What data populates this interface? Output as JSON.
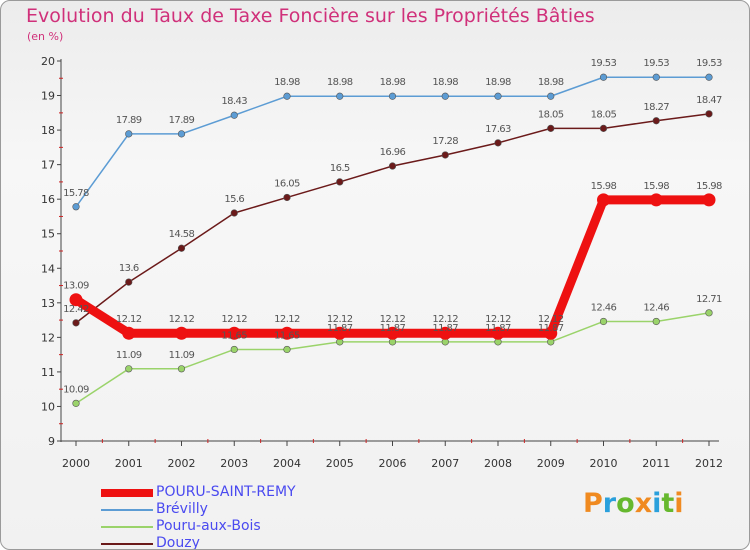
{
  "title": "Evolution du Taux de Taxe Foncière sur les Propriétés Bâties",
  "unit": "(en %)",
  "logo": {
    "text": "Proxiti",
    "colors": [
      "#f08a20",
      "#2aa0dc",
      "#66b82e",
      "#f08a20",
      "#2aa0dc",
      "#66b82e",
      "#f08a20"
    ]
  },
  "chart_data": {
    "type": "line",
    "title": "Evolution du Taux de Taxe Foncière sur les Propriétés Bâties",
    "ylabel": "(en %)",
    "xlabel": "",
    "categories": [
      "2000",
      "2001",
      "2002",
      "2003",
      "2004",
      "2005",
      "2006",
      "2007",
      "2008",
      "2009",
      "2010",
      "2011",
      "2012"
    ],
    "yticks": [
      "9",
      "10",
      "11",
      "12",
      "13",
      "14",
      "15",
      "16",
      "17",
      "18",
      "19",
      "20"
    ],
    "ylim": [
      9,
      20
    ],
    "grid": false,
    "series": [
      {
        "name": "Brévilly",
        "color": "#5c9cd4",
        "labels": [
          "15.78",
          "17.89",
          "17.89",
          "18.43",
          "18.98",
          "18.98",
          "18.98",
          "18.98",
          "18.98",
          "18.98",
          "19.53",
          "19.53",
          "19.53"
        ],
        "values": [
          15.78,
          17.89,
          17.89,
          18.43,
          18.98,
          18.98,
          18.98,
          18.98,
          18.98,
          18.98,
          19.53,
          19.53,
          19.53
        ]
      },
      {
        "name": "Douzy",
        "color": "#6b1a1a",
        "labels": [
          "12.42",
          "13.6",
          "14.58",
          "15.6",
          "16.05",
          "16.5",
          "16.96",
          "17.28",
          "17.63",
          "18.05",
          "18.05",
          "18.27",
          "18.47"
        ],
        "values": [
          12.42,
          13.6,
          14.58,
          15.6,
          16.05,
          16.5,
          16.96,
          17.28,
          17.63,
          18.05,
          18.05,
          18.27,
          18.47
        ]
      },
      {
        "name": "Pouru-aux-Bois",
        "color": "#9ad36a",
        "labels": [
          "10.09",
          "11.09",
          "11.09",
          "11.65",
          "11.65",
          "11.87",
          "11.87",
          "11.87",
          "11.87",
          "11.87",
          "12.46",
          "12.46",
          "12.71"
        ],
        "values": [
          10.09,
          11.09,
          11.09,
          11.65,
          11.65,
          11.87,
          11.87,
          11.87,
          11.87,
          11.87,
          12.46,
          12.46,
          12.71
        ]
      },
      {
        "name": "POURU-SAINT-REMY",
        "color": "#ee1111",
        "labels": [
          "13.09",
          "12.12",
          "12.12",
          "12.12",
          "12.12",
          "12.12",
          "12.12",
          "12.12",
          "12.12",
          "12.12",
          "15.98",
          "15.98",
          "15.98"
        ],
        "values": [
          13.09,
          12.12,
          12.12,
          12.12,
          12.12,
          12.12,
          12.12,
          12.12,
          12.12,
          12.12,
          15.98,
          15.98,
          15.98
        ]
      }
    ],
    "legend": [
      "POURU-SAINT-REMY",
      "Brévilly",
      "Pouru-aux-Bois",
      "Douzy"
    ]
  }
}
